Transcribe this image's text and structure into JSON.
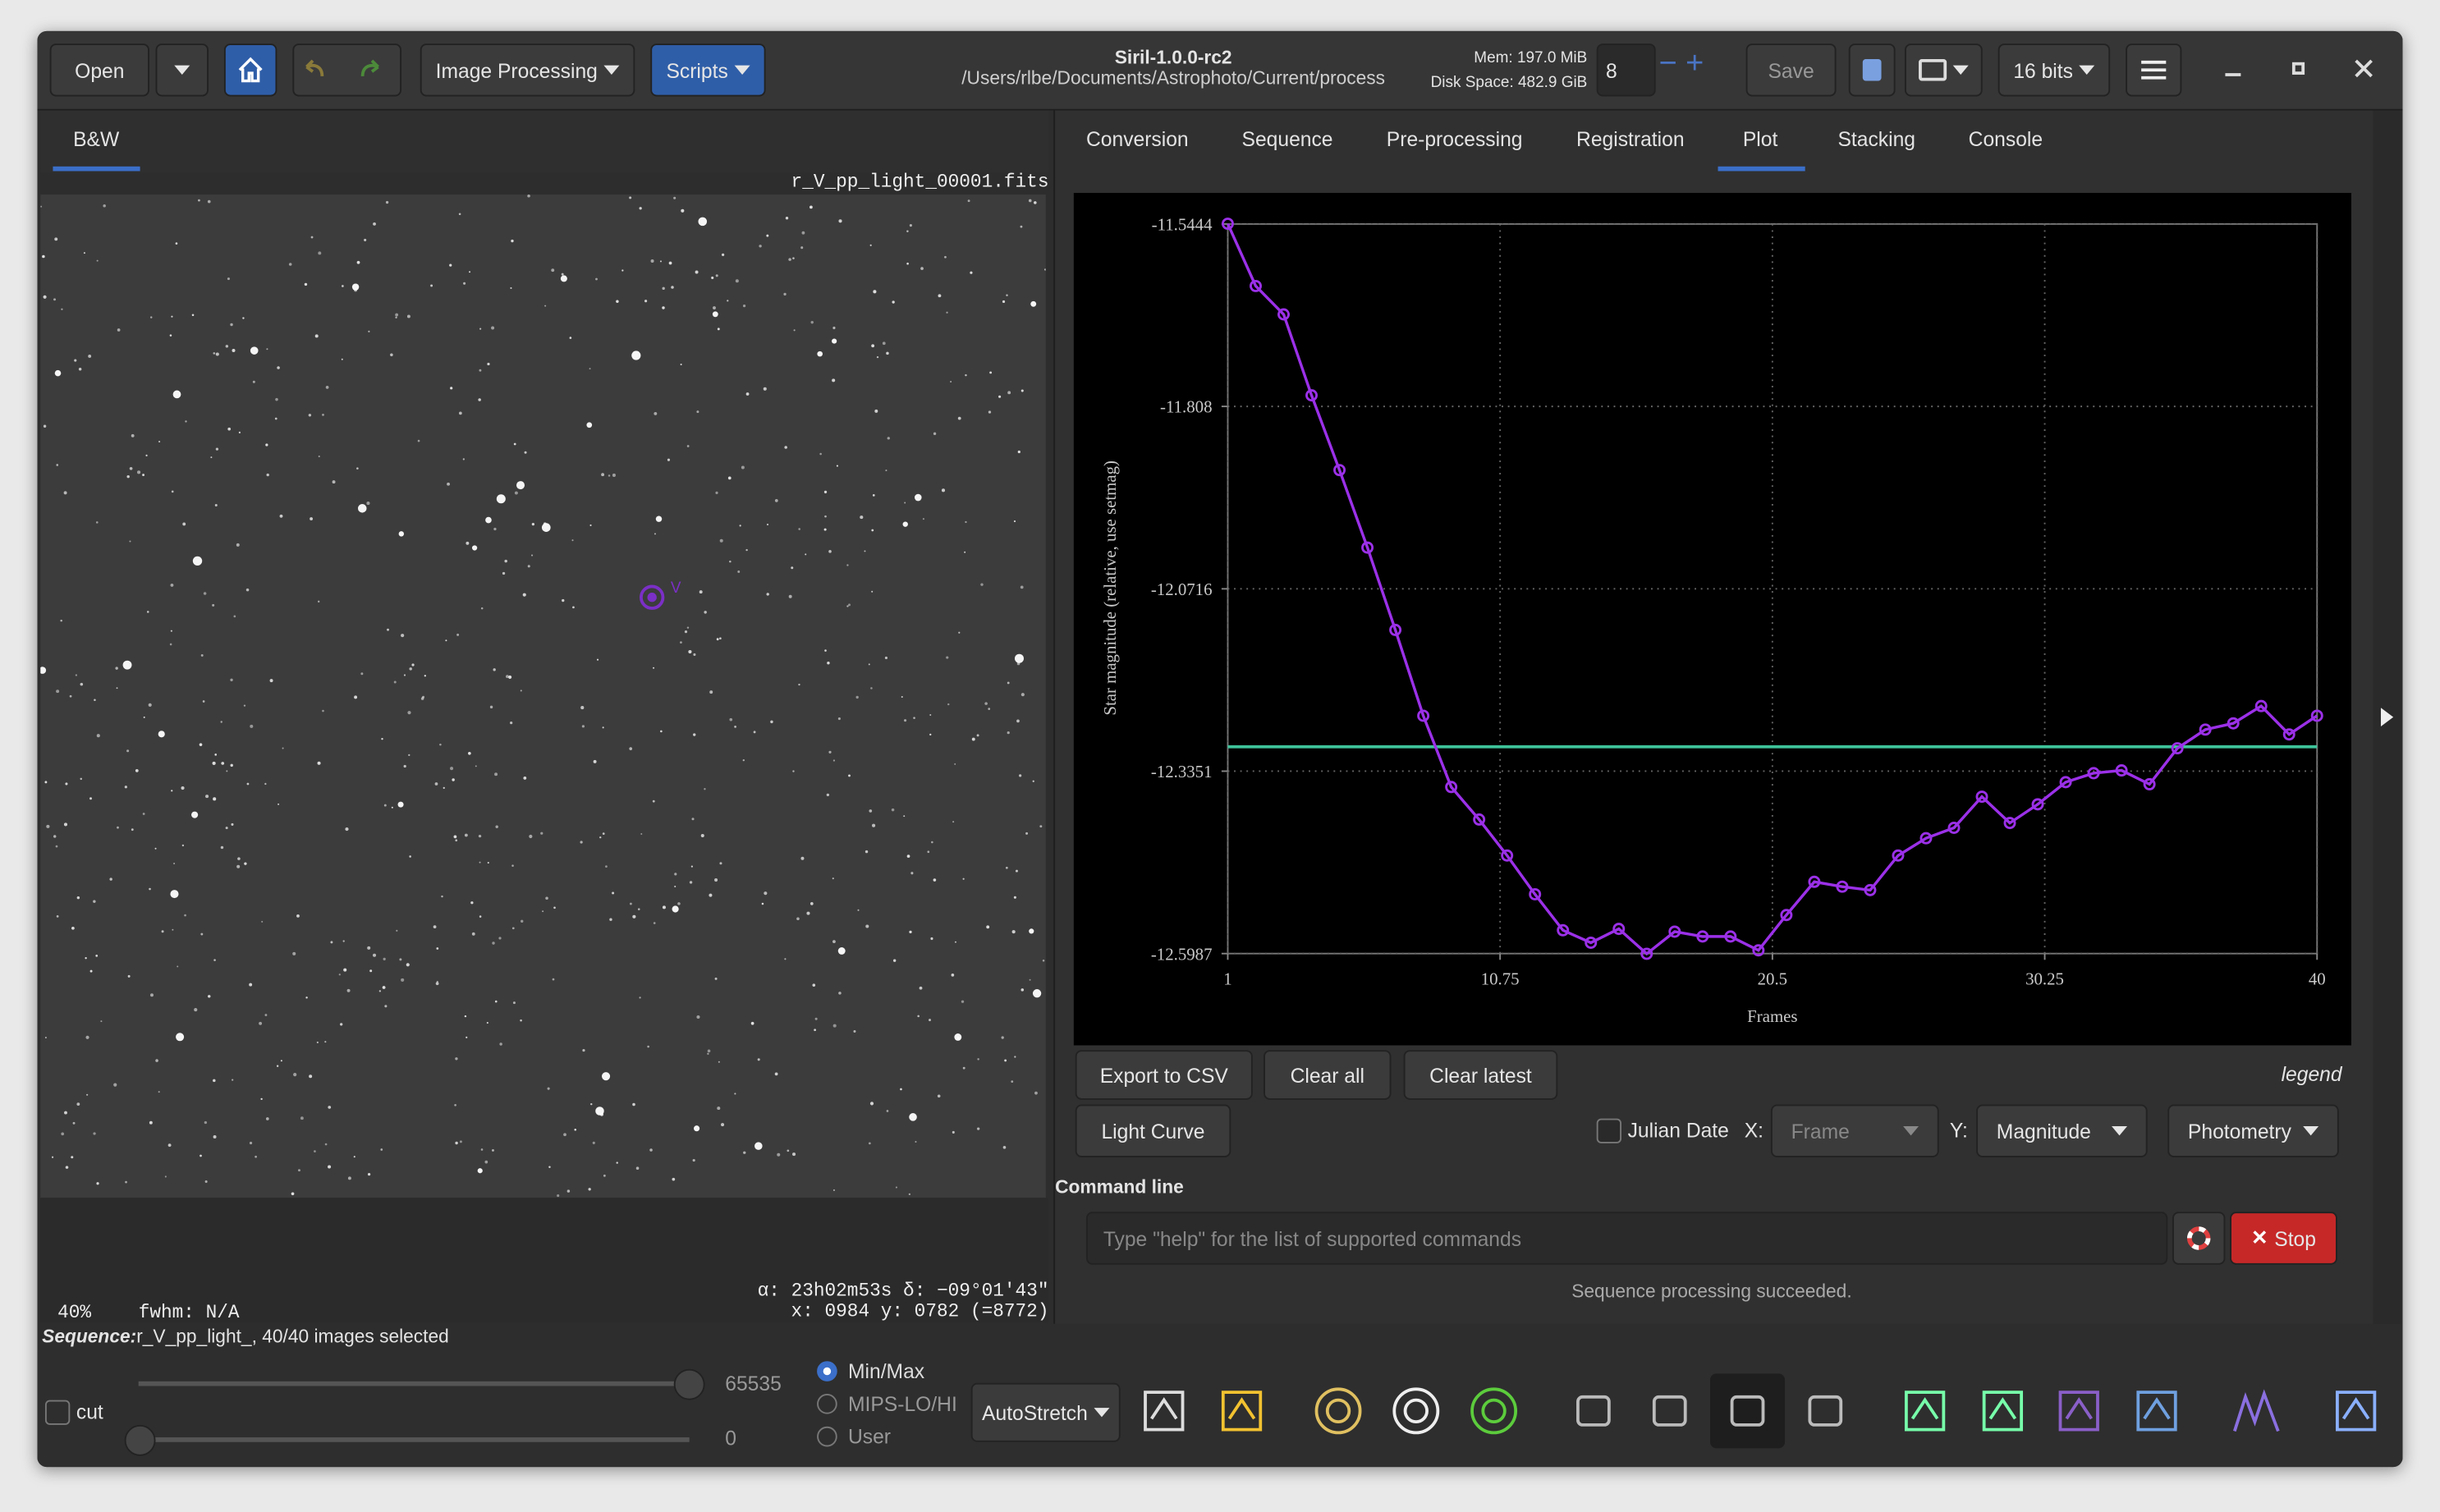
{
  "titlebar": {
    "title": "Siril-1.0.0-rc2",
    "path": "/Users/rlbe/Documents/Astrophoto/Current/process",
    "mem": "Mem: 197.0 MiB",
    "disk": "Disk Space: 482.9 GiB",
    "threads": "8",
    "save": "Save",
    "bits": "16 bits"
  },
  "toolbar": {
    "open": "Open",
    "image_processing": "Image Processing",
    "scripts": "Scripts"
  },
  "left": {
    "tab": "B&W",
    "filename": "r_V_pp_light_00001.fits",
    "marker": "V",
    "zoom": "40%",
    "fwhm": "fwhm: N/A",
    "coords": "α: 23h02m53s δ: −09°01'43\"",
    "pixel": "x: 0984 y: 0782 (=8772)"
  },
  "tabs": [
    "Conversion",
    "Sequence",
    "Pre-processing",
    "Registration",
    "Plot",
    "Stacking",
    "Console"
  ],
  "chart_data": {
    "type": "line",
    "xlabel": "Frames",
    "ylabel": "Star magnitude (relative, use setmag)",
    "x": [
      1,
      2,
      3,
      4,
      5,
      6,
      7,
      8,
      9,
      10,
      11,
      12,
      13,
      14,
      15,
      16,
      17,
      18,
      19,
      20,
      21,
      22,
      23,
      24,
      25,
      26,
      27,
      28,
      29,
      30,
      31,
      32,
      33,
      34,
      35,
      36,
      37,
      38,
      39,
      40
    ],
    "series": [
      {
        "color": "#9b30e8",
        "values": [
          -11.544,
          -11.634,
          -11.675,
          -11.792,
          -11.9,
          -12.012,
          -12.131,
          -12.255,
          -12.358,
          -12.405,
          -12.457,
          -12.513,
          -12.565,
          -12.583,
          -12.563,
          -12.599,
          -12.567,
          -12.574,
          -12.574,
          -12.594,
          -12.543,
          -12.495,
          -12.502,
          -12.507,
          -12.457,
          -12.432,
          -12.417,
          -12.372,
          -12.41,
          -12.383,
          -12.351,
          -12.338,
          -12.334,
          -12.354,
          -12.302,
          -12.275,
          -12.266,
          -12.241,
          -12.282,
          -12.255
        ]
      }
    ],
    "hline": {
      "value": -12.2998,
      "color": "#3fc49a"
    },
    "xlim": [
      1,
      40
    ],
    "xticks": [
      1,
      10.75,
      20.5,
      30.25,
      40
    ],
    "ylim": [
      -12.5987,
      -11.5444
    ],
    "yticks": [
      -11.5444,
      -11.808,
      -12.0716,
      -12.3351,
      -12.5987
    ],
    "grid": true
  },
  "plot_controls": {
    "export": "Export to CSV",
    "clear_all": "Clear all",
    "clear_latest": "Clear latest",
    "legend": "legend",
    "light_curve": "Light Curve",
    "julian": "Julian Date",
    "x_label": "X:",
    "x_value": "Frame",
    "y_label": "Y:",
    "y_value": "Magnitude",
    "mode": "Photometry"
  },
  "command": {
    "title": "Command line",
    "placeholder": "Type \"help\" for the list of supported commands",
    "stop": "Stop",
    "status": "Sequence processing succeeded."
  },
  "sequence": {
    "label": "Sequence:",
    "text": "r_V_pp_light_, 40/40 images selected"
  },
  "bottom": {
    "cut": "cut",
    "high": 65535,
    "low": 0,
    "radios": [
      "Min/Max",
      "MIPS-LO/HI",
      "User"
    ],
    "stretch": "AutoStretch"
  }
}
